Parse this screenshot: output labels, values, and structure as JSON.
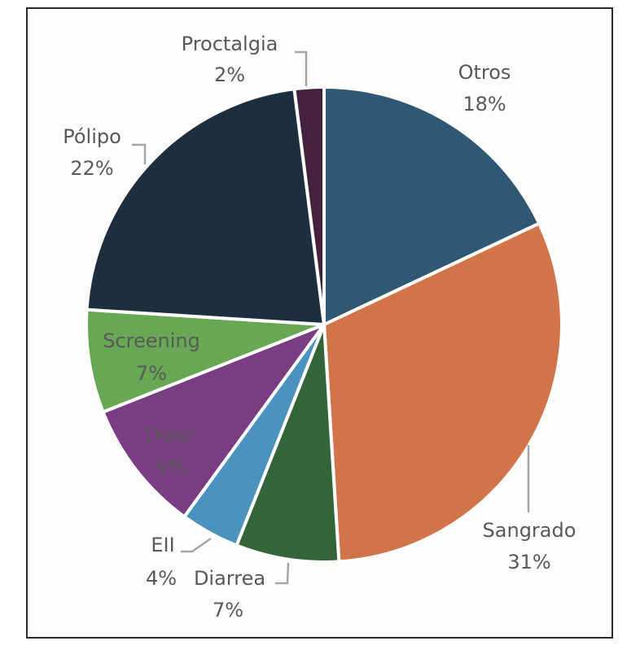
{
  "chart_data": {
    "type": "pie",
    "title": "",
    "start_angle_deg": 0,
    "direction": "clockwise",
    "categories": [
      "Otros",
      "Sangrado",
      "Diarrea",
      "EII",
      "Dolor",
      "Screening",
      "Pólipo",
      "Proctalgia"
    ],
    "values": [
      18,
      31,
      7,
      4,
      9,
      7,
      22,
      2
    ],
    "labels": [
      "18%",
      "31%",
      "7%",
      "4%",
      "9%",
      "7%",
      "22%",
      "2%"
    ],
    "colors": [
      "#305873",
      "#d2744a",
      "#336539",
      "#4a93be",
      "#7a3c82",
      "#68a855",
      "#1d2f3e",
      "#45203f"
    ],
    "legend": "none",
    "data_labels": "category name and percentage"
  },
  "labels": {
    "otros": {
      "name": "Otros",
      "pct": "18%"
    },
    "sangrado": {
      "name": "Sangrado",
      "pct": "31%"
    },
    "diarrea": {
      "name": "Diarrea",
      "pct": "7%"
    },
    "eii": {
      "name": "EII",
      "pct": "4%"
    },
    "dolor": {
      "name": "Dolor",
      "pct": "9%"
    },
    "screening": {
      "name": "Screening",
      "pct": "7%"
    },
    "polipo": {
      "name": "Pólipo",
      "pct": "22%"
    },
    "proctalgia": {
      "name": "Proctalgia",
      "pct": "2%"
    }
  }
}
